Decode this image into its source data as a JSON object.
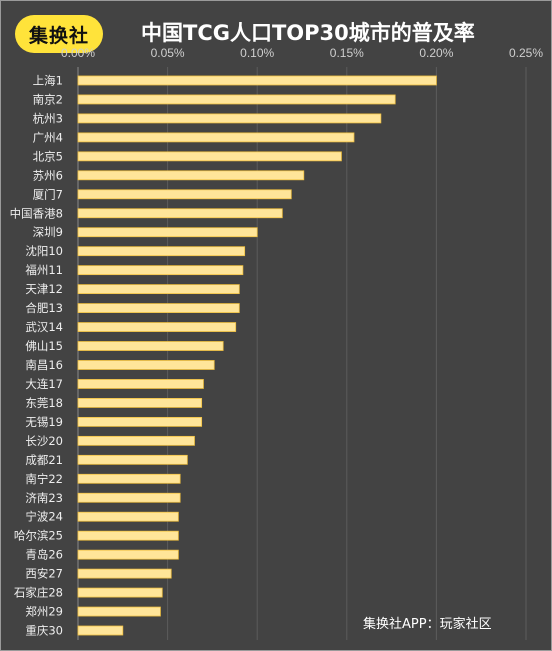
{
  "brand": {
    "logo_text": "集换社"
  },
  "title": "中国TCG人口TOP30城市的普及率",
  "footnote": "集换社APP：玩家社区",
  "colors": {
    "background": "#434343",
    "bar": "#ffe599",
    "bar_border": "#f0c040",
    "grid": "#5c5c5c",
    "logo_bg": "#ffe33a"
  },
  "chart_data": {
    "type": "bar",
    "orientation": "horizontal",
    "x_axis_position": "top",
    "xlim": [
      0,
      0.25
    ],
    "x_ticks": [
      "0.00%",
      "0.05%",
      "0.10%",
      "0.15%",
      "0.20%",
      "0.25%"
    ],
    "x_tick_values": [
      0,
      0.05,
      0.1,
      0.15,
      0.2,
      0.25
    ],
    "grid": true,
    "categories": [
      "上海1",
      "南京2",
      "杭州3",
      "广州4",
      "北京5",
      "苏州6",
      "厦门7",
      "中国香港8",
      "深圳9",
      "沈阳10",
      "福州11",
      "天津12",
      "合肥13",
      "武汉14",
      "佛山15",
      "南昌16",
      "大连17",
      "东莞18",
      "无锡19",
      "长沙20",
      "成都21",
      "南宁22",
      "济南23",
      "宁波24",
      "哈尔滨25",
      "青岛26",
      "西安27",
      "石家庄28",
      "郑州29",
      "重庆30"
    ],
    "values": [
      0.2,
      0.177,
      0.169,
      0.154,
      0.147,
      0.126,
      0.119,
      0.114,
      0.1,
      0.093,
      0.092,
      0.09,
      0.09,
      0.088,
      0.081,
      0.076,
      0.07,
      0.069,
      0.069,
      0.065,
      0.061,
      0.057,
      0.057,
      0.056,
      0.056,
      0.056,
      0.052,
      0.047,
      0.046,
      0.025
    ]
  }
}
